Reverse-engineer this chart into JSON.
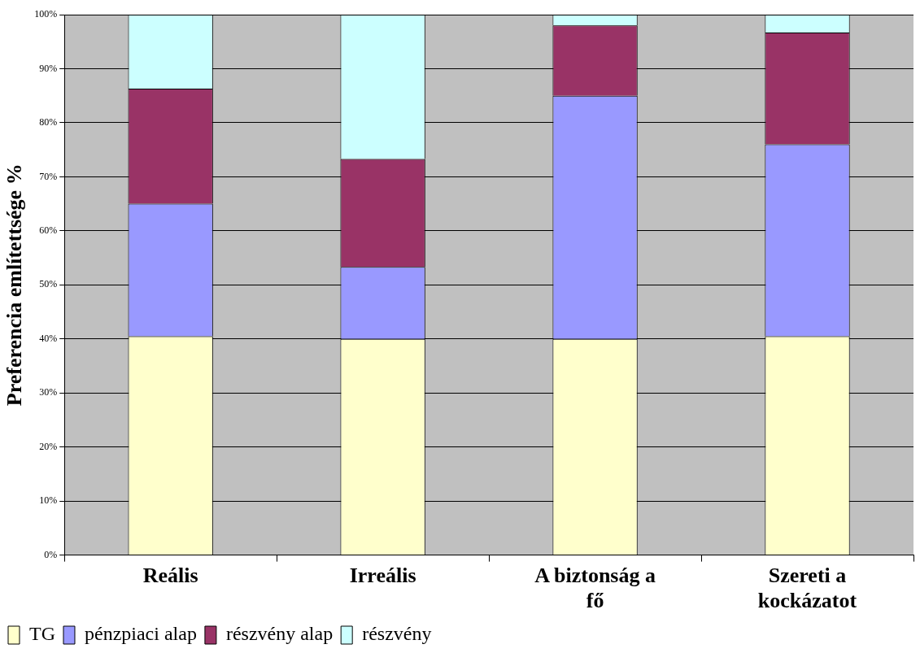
{
  "chart_data": {
    "type": "bar",
    "stacked": true,
    "ylabel": "Preferencia említettsége %",
    "categories": [
      "Reális",
      "Irreális",
      "A biztonság a fő",
      "Szereti a kockázatot"
    ],
    "series": [
      {
        "name": "TG",
        "color": "#ffffcc",
        "values": [
          40.5,
          40,
          40,
          40.5
        ]
      },
      {
        "name": "pénzpiaci alap",
        "color": "#9999ff",
        "values": [
          24.5,
          13.3,
          45,
          35.5
        ]
      },
      {
        "name": "részvény alap",
        "color": "#993366",
        "values": [
          21.3,
          20,
          13,
          20.7
        ]
      },
      {
        "name": "részvény",
        "color": "#ccffff",
        "values": [
          13.7,
          26.7,
          2,
          3.3
        ]
      }
    ],
    "ylim": [
      0,
      100
    ],
    "yticks": [
      {
        "value": 0,
        "label": "0%"
      },
      {
        "value": 10,
        "label": "10%"
      },
      {
        "value": 20,
        "label": "20%"
      },
      {
        "value": 30,
        "label": "30%"
      },
      {
        "value": 40,
        "label": "40%"
      },
      {
        "value": 50,
        "label": "50%"
      },
      {
        "value": 60,
        "label": "60%"
      },
      {
        "value": 70,
        "label": "70%"
      },
      {
        "value": 80,
        "label": "80%"
      },
      {
        "value": 90,
        "label": "90%"
      },
      {
        "value": 100,
        "label": "100%"
      }
    ],
    "grid": "y",
    "legend": "bottom left"
  }
}
